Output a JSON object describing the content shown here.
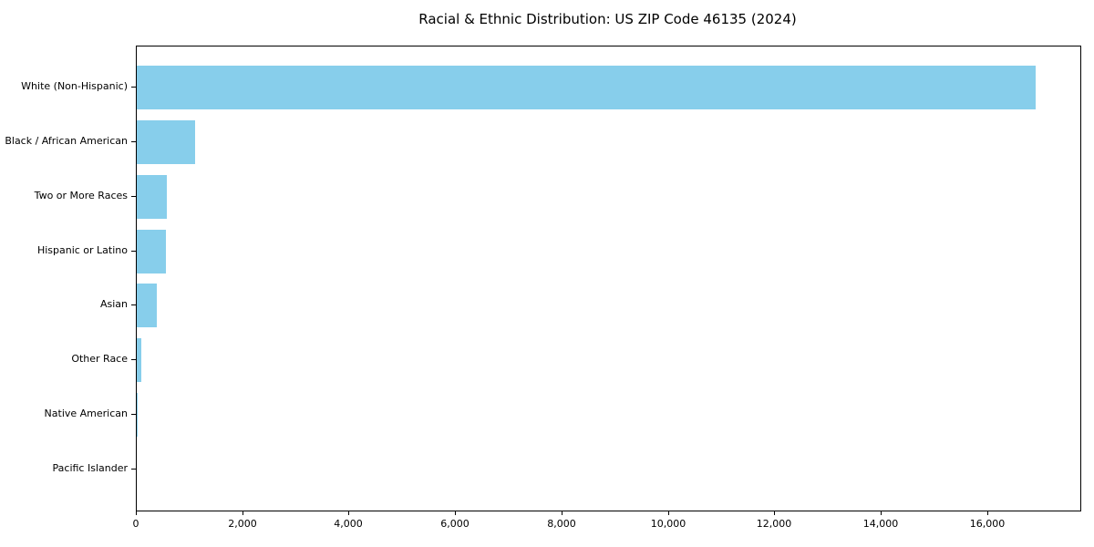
{
  "chart_data": {
    "type": "bar",
    "orientation": "horizontal",
    "title": "Racial & Ethnic Distribution: US ZIP Code 46135 (2024)",
    "categories": [
      "White (Non-Hispanic)",
      "Black / African American",
      "Two or More Races",
      "Hispanic or Latino",
      "Asian",
      "Other Race",
      "Native American",
      "Pacific Islander"
    ],
    "values": [
      16890,
      1100,
      560,
      540,
      370,
      90,
      20,
      0
    ],
    "xlabel": "",
    "ylabel": "",
    "xlim": [
      0,
      17735
    ],
    "xticks": [
      0,
      2000,
      4000,
      6000,
      8000,
      10000,
      12000,
      14000,
      16000
    ],
    "xtick_labels": [
      "0",
      "2,000",
      "4,000",
      "6,000",
      "8,000",
      "10,000",
      "12,000",
      "14,000",
      "16,000"
    ],
    "bar_color": "#87CEEB",
    "axis_color": "#000000",
    "background_color": "#ffffff",
    "grid": false,
    "legend": null
  }
}
